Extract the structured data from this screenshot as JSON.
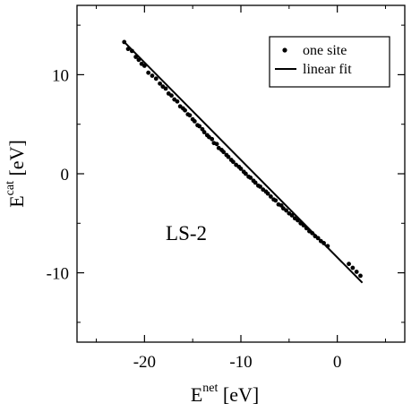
{
  "chart_data": {
    "type": "scatter",
    "title": "",
    "xlabel": {
      "base": "E",
      "sup": "net",
      "unit": " [eV]"
    },
    "ylabel": {
      "base": "E",
      "sup": "cat",
      "unit": " [eV]"
    },
    "xlim": [
      -27,
      7
    ],
    "ylim": [
      -17,
      17
    ],
    "x_ticks": [
      -20,
      -10,
      0
    ],
    "x_tick_labels": [
      "-20",
      "-10",
      "0"
    ],
    "y_ticks": [
      -10,
      0,
      10
    ],
    "y_tick_labels": [
      "-10",
      "0",
      "10"
    ],
    "grid": false,
    "legend": {
      "placement": "top-right",
      "entries": [
        {
          "label": "one site",
          "marker": "dot"
        },
        {
          "label": "linear fit",
          "marker": "line"
        }
      ]
    },
    "annotation": {
      "text": "LS-2",
      "x": -17.8,
      "y": -6.7
    },
    "fit_line": {
      "x": [
        -22.2,
        2.6
      ],
      "y": [
        13.4,
        -11.0
      ]
    },
    "series": [
      {
        "name": "one site",
        "x": [
          -22.1,
          -21.7,
          -21.3,
          -20.9,
          -20.6,
          -20.3,
          -20.0,
          -19.6,
          -19.2,
          -18.8,
          -18.4,
          -18.1,
          -17.8,
          -17.5,
          -17.2,
          -16.9,
          -16.6,
          -16.3,
          -16.0,
          -15.8,
          -15.5,
          -15.3,
          -15.0,
          -14.8,
          -14.5,
          -14.3,
          -14.0,
          -13.8,
          -13.5,
          -13.3,
          -13.0,
          -12.8,
          -12.5,
          -12.3,
          -12.0,
          -11.8,
          -11.5,
          -11.3,
          -11.0,
          -10.8,
          -10.5,
          -10.2,
          -10.0,
          -9.7,
          -9.5,
          -9.2,
          -9.0,
          -8.7,
          -8.5,
          -8.2,
          -8.0,
          -7.7,
          -7.4,
          -7.2,
          -6.9,
          -6.6,
          -6.4,
          -6.1,
          -5.8,
          -5.6,
          -5.3,
          -5.0,
          -4.7,
          -4.4,
          -4.1,
          -3.8,
          -3.5,
          -3.2,
          -2.9,
          -2.6,
          -2.3,
          -2.0,
          -1.7,
          -1.4,
          -1.0,
          1.2,
          1.6,
          2.0,
          2.4
        ],
        "y": [
          13.3,
          12.6,
          12.4,
          11.8,
          11.5,
          11.1,
          10.9,
          10.2,
          9.9,
          9.6,
          9.1,
          8.8,
          8.6,
          8.1,
          7.9,
          7.5,
          7.3,
          6.8,
          6.6,
          6.4,
          6.0,
          5.9,
          5.5,
          5.3,
          4.9,
          4.8,
          4.5,
          4.2,
          3.9,
          3.7,
          3.5,
          3.1,
          3.0,
          2.6,
          2.4,
          2.2,
          1.9,
          1.7,
          1.4,
          1.2,
          0.9,
          0.7,
          0.5,
          0.2,
          0.0,
          -0.3,
          -0.4,
          -0.7,
          -0.9,
          -1.2,
          -1.3,
          -1.6,
          -1.8,
          -2.0,
          -2.3,
          -2.6,
          -2.7,
          -3.1,
          -3.2,
          -3.5,
          -3.7,
          -4.0,
          -4.2,
          -4.5,
          -4.7,
          -5.0,
          -5.2,
          -5.5,
          -5.8,
          -6.0,
          -6.3,
          -6.5,
          -6.8,
          -7.0,
          -7.3,
          -9.1,
          -9.5,
          -9.9,
          -10.3
        ]
      }
    ]
  }
}
